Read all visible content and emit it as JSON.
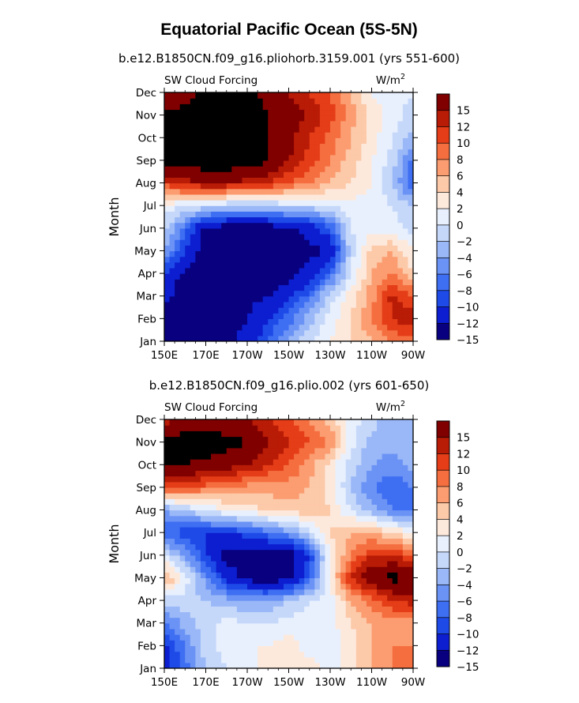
{
  "figure": {
    "title": "Equatorial Pacific Ocean (5S-5N)"
  },
  "chart_data": [
    {
      "type": "heatmap",
      "subtitle": "b.e12.B1850CN.f09_g16.pliohorb.3159.001 (yrs 551-600)",
      "left_string": "SW Cloud Forcing",
      "units": "W/m",
      "units_sup": "2",
      "xlabel": "",
      "ylabel": "Month",
      "xticks": [
        "150E",
        "170E",
        "170W",
        "150W",
        "130W",
        "110W",
        "90W"
      ],
      "yticks": [
        "Jan",
        "Feb",
        "Mar",
        "Apr",
        "May",
        "Jun",
        "Jul",
        "Aug",
        "Sep",
        "Oct",
        "Nov",
        "Dec"
      ],
      "xlim": [
        150,
        270
      ],
      "colorbar": {
        "levels": [
          -15,
          -12,
          -10,
          -8,
          -6,
          -4,
          -2,
          0,
          2,
          4,
          6,
          8,
          10,
          12,
          15
        ],
        "labels": [
          "15",
          "12",
          "10",
          "8",
          "6",
          "4",
          "2",
          "0",
          "−2",
          "−4",
          "−6",
          "−8",
          "−10",
          "−12",
          "−15"
        ]
      },
      "lon": [
        150,
        160,
        170,
        180,
        190,
        200,
        210,
        220,
        230,
        240,
        250,
        260,
        270
      ],
      "values": [
        [
          -16,
          -17,
          -17,
          -16,
          -14,
          -10,
          -6,
          -2,
          0,
          2,
          4,
          6,
          7
        ],
        [
          -16,
          -17,
          -17,
          -16,
          -15,
          -12,
          -9,
          -5,
          -1,
          2,
          6,
          10,
          12
        ],
        [
          -14,
          -17,
          -17,
          -17,
          -16,
          -15,
          -13,
          -9,
          -3,
          1,
          5,
          11,
          8
        ],
        [
          -12,
          -16,
          -17,
          -17,
          -17,
          -17,
          -16,
          -14,
          -9,
          -2,
          4,
          6,
          2
        ],
        [
          -6,
          -12,
          -17,
          -17,
          -17,
          -17,
          -17,
          -16,
          -15,
          -3,
          3,
          4,
          0
        ],
        [
          -3,
          -9,
          -16,
          -17,
          -17,
          -17,
          -16,
          -14,
          -10,
          -2,
          -1,
          -1,
          -3
        ],
        [
          -1,
          -2,
          -3,
          -4,
          -4,
          -4,
          -3,
          -3,
          -2,
          -1,
          -1,
          -2,
          -4
        ],
        [
          9,
          11,
          12,
          12,
          11,
          10,
          8,
          6,
          4,
          2,
          0,
          -4,
          -10
        ],
        [
          17,
          17,
          17,
          17,
          17,
          15,
          12,
          9,
          6,
          3,
          0,
          -3,
          -9
        ],
        [
          17,
          17,
          17,
          17,
          17,
          15,
          13,
          10,
          7,
          4,
          1,
          -2,
          -5
        ],
        [
          16,
          16,
          16,
          17,
          17,
          15,
          13,
          12,
          9,
          5,
          1,
          -1,
          -3
        ],
        [
          12,
          14,
          16,
          16,
          16,
          14,
          12,
          10,
          8,
          4,
          0,
          -1,
          -2
        ]
      ]
    },
    {
      "type": "heatmap",
      "subtitle": "b.e12.B1850CN.f09_g16.plio.002 (yrs 601-650)",
      "left_string": "SW Cloud Forcing",
      "units": "W/m",
      "units_sup": "2",
      "xlabel": "",
      "ylabel": "Month",
      "xticks": [
        "150E",
        "170E",
        "170W",
        "150W",
        "130W",
        "110W",
        "90W"
      ],
      "yticks": [
        "Jan",
        "Feb",
        "Mar",
        "Apr",
        "May",
        "Jun",
        "Jul",
        "Aug",
        "Sep",
        "Oct",
        "Nov",
        "Dec"
      ],
      "xlim": [
        150,
        270
      ],
      "colorbar": {
        "levels": [
          -15,
          -12,
          -10,
          -8,
          -6,
          -4,
          -2,
          0,
          2,
          4,
          6,
          8,
          10,
          12,
          15
        ],
        "labels": [
          "15",
          "12",
          "10",
          "8",
          "6",
          "4",
          "2",
          "0",
          "−2",
          "−4",
          "−6",
          "−8",
          "−10",
          "−12",
          "−15"
        ]
      },
      "lon": [
        150,
        160,
        170,
        180,
        190,
        200,
        210,
        220,
        230,
        240,
        250,
        260,
        270
      ],
      "values": [
        [
          -14,
          -9,
          -4,
          -2,
          -1,
          1,
          2,
          1,
          -1,
          1,
          4,
          6,
          6
        ],
        [
          -13,
          -8,
          -3,
          -1,
          0,
          0,
          1,
          -1,
          -1,
          1,
          4,
          6,
          6
        ],
        [
          -9,
          -5,
          -3,
          -1,
          -2,
          -2,
          -1,
          -1,
          -1,
          2,
          4,
          5,
          5
        ],
        [
          -3,
          -3,
          -4,
          -5,
          -6,
          -6,
          -4,
          -2,
          -1,
          4,
          7,
          10,
          11
        ],
        [
          5,
          -1,
          -7,
          -13,
          -16,
          -17,
          -16,
          -10,
          1,
          10,
          14,
          16,
          14
        ],
        [
          -2,
          -6,
          -12,
          -16,
          -17,
          -17,
          -17,
          -12,
          0,
          6,
          10,
          10,
          8
        ],
        [
          -10,
          -11,
          -12,
          -12,
          -11,
          -9,
          -7,
          -3,
          2,
          4,
          4,
          2,
          0
        ],
        [
          -6,
          -4,
          -2,
          0,
          1,
          2,
          3,
          3,
          2,
          -2,
          -5,
          -8,
          -9
        ],
        [
          8,
          8,
          7,
          6,
          5,
          5,
          5,
          4,
          1,
          -4,
          -8,
          -10,
          -8
        ],
        [
          15,
          15,
          14,
          13,
          12,
          10,
          8,
          5,
          1,
          -3,
          -6,
          -7,
          -5
        ],
        [
          17,
          17,
          17,
          16,
          15,
          12,
          10,
          8,
          6,
          -1,
          -5,
          -5,
          -4
        ],
        [
          11,
          12,
          13,
          13,
          12,
          10,
          8,
          6,
          3,
          -1,
          -3,
          -6,
          -6
        ]
      ]
    }
  ],
  "colors": {
    "palette": [
      "#08007f",
      "#0c1ed0",
      "#1e4ae8",
      "#3e6ef2",
      "#6b93f5",
      "#9ab8f7",
      "#c6d8fa",
      "#e8f0fd",
      "#fde9dc",
      "#fcc9a9",
      "#fb9d71",
      "#f56e3f",
      "#e43d17",
      "#b81b06",
      "#800000"
    ]
  }
}
